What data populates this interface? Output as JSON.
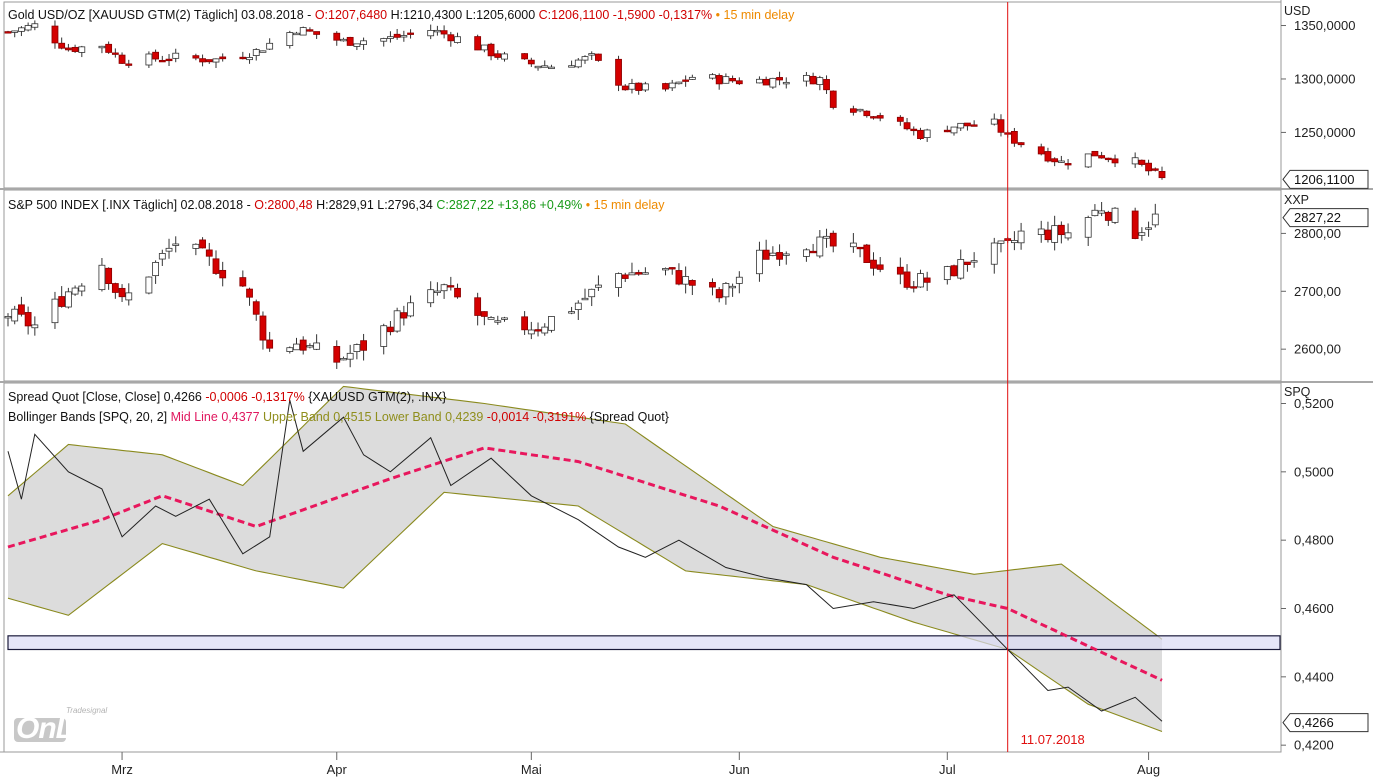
{
  "panels": {
    "gold": {
      "segments": [
        {
          "text": "Gold USD/OZ [XAUUSD GTM(2) Täglich] 03.08.2018 - ",
          "color": "dark"
        },
        {
          "text": "O:1207,6480",
          "color": "red"
        },
        {
          "text": " H:1210,4300 L:1205,6000 ",
          "color": "dark"
        },
        {
          "text": "C:1206,1100 -1,5900 -0,1317%",
          "color": "red"
        },
        {
          "text": " • 15 min delay",
          "color": "orange"
        }
      ],
      "unit": "USD",
      "ticks": [
        "1350,0000",
        "1300,0000",
        "1250,0000"
      ],
      "last_value": "1206,1100"
    },
    "spx": {
      "segments": [
        {
          "text": "S&P 500 INDEX [.INX Täglich] 02.08.2018 - ",
          "color": "dark"
        },
        {
          "text": "O:2800,48",
          "color": "red"
        },
        {
          "text": " H:2829,91 L:2796,34 ",
          "color": "dark"
        },
        {
          "text": "C:2827,22 +13,86 +0,49%",
          "color": "green"
        },
        {
          "text": " • 15 min delay",
          "color": "orange"
        }
      ],
      "unit": "XXP",
      "ticks": [
        "2800,00",
        "2700,00",
        "2600,00"
      ],
      "last_value": "2827,22"
    },
    "spread": {
      "line1_segments": [
        {
          "text": "Spread Quot [Close, Close] ",
          "color": "dark"
        },
        {
          "text": "0,4266",
          "color": "dark"
        },
        {
          "text": " -0,0006 -0,1317%",
          "color": "red"
        },
        {
          "text": " {XAUUSD GTM(2), .INX}",
          "color": "dark"
        }
      ],
      "line2_segments": [
        {
          "text": "Bollinger Bands [SPQ, 20, 2] ",
          "color": "dark"
        },
        {
          "text": "Mid Line 0,4377",
          "color": "pink"
        },
        {
          "text": " Upper Band 0,4515",
          "color": "olive"
        },
        {
          "text": " Lower Band 0,4239",
          "color": "olive"
        },
        {
          "text": " -0,0014 -0,3191%",
          "color": "red"
        },
        {
          "text": " {Spread Quot}",
          "color": "dark"
        }
      ],
      "unit": "SPQ",
      "ticks": [
        "0,5200",
        "0,5000",
        "0,4800",
        "0,4600",
        "0,4400",
        "0,4200"
      ],
      "last_value": "0,4266",
      "marker_date": "11.07.2018"
    }
  },
  "months": [
    "Mrz",
    "Apr",
    "Mai",
    "Jun",
    "Jul",
    "Aug"
  ],
  "logo": {
    "small": "Tradesignal",
    "word": "OnLine"
  },
  "colors": {
    "up": "#ffffff",
    "down": "#d40000",
    "wick": "#333333",
    "band_fill": "#dcdcdc",
    "band_line": "#8a8a1e",
    "mid_line": "#e8175d",
    "spread_line": "#222222",
    "marker": "#e01010",
    "zone_fill": "#dcdcf5",
    "panel_border": "#9a9a9a"
  },
  "chart_data": [
    {
      "type": "candlestick",
      "title": "Gold USD/OZ [XAUUSD GTM(2) Täglich]",
      "ylabel": "USD",
      "ylim": [
        1198,
        1372
      ],
      "x_range": [
        "2018-02-12",
        "2018-08-03"
      ],
      "close_path": [
        [
          "2018-02-12",
          1344
        ],
        [
          "2018-02-16",
          1350
        ],
        [
          "2018-02-21",
          1328
        ],
        [
          "2018-02-26",
          1332
        ],
        [
          "2018-03-01",
          1318
        ],
        [
          "2018-03-09",
          1320
        ],
        [
          "2018-03-15",
          1318
        ],
        [
          "2018-03-21",
          1326
        ],
        [
          "2018-03-27",
          1347
        ],
        [
          "2018-04-03",
          1335
        ],
        [
          "2018-04-10",
          1338
        ],
        [
          "2018-04-16",
          1346
        ],
        [
          "2018-04-20",
          1338
        ],
        [
          "2018-04-26",
          1322
        ],
        [
          "2018-04-30",
          1315
        ],
        [
          "2018-05-04",
          1312
        ],
        [
          "2018-05-10",
          1320
        ],
        [
          "2018-05-15",
          1292
        ],
        [
          "2018-05-21",
          1290
        ],
        [
          "2018-05-25",
          1302
        ],
        [
          "2018-06-01",
          1298
        ],
        [
          "2018-06-08",
          1300
        ],
        [
          "2018-06-13",
          1300
        ],
        [
          "2018-06-15",
          1278
        ],
        [
          "2018-06-21",
          1268
        ],
        [
          "2018-06-28",
          1248
        ],
        [
          "2018-07-03",
          1256
        ],
        [
          "2018-07-09",
          1258
        ],
        [
          "2018-07-11",
          1246
        ],
        [
          "2018-07-17",
          1228
        ],
        [
          "2018-07-19",
          1222
        ],
        [
          "2018-07-24",
          1230
        ],
        [
          "2018-07-30",
          1222
        ],
        [
          "2018-08-01",
          1214
        ],
        [
          "2018-08-03",
          1206
        ]
      ]
    },
    {
      "type": "candlestick",
      "title": "S&P 500 INDEX [.INX Täglich]",
      "ylabel": "XXP",
      "ylim": [
        2545,
        2875
      ],
      "x_range": [
        "2018-02-12",
        "2018-08-02"
      ],
      "close_path": [
        [
          "2018-02-12",
          2660
        ],
        [
          "2018-02-16",
          2640
        ],
        [
          "2018-02-21",
          2700
        ],
        [
          "2018-02-26",
          2750
        ],
        [
          "2018-03-01",
          2680
        ],
        [
          "2018-03-09",
          2785
        ],
        [
          "2018-03-13",
          2760
        ],
        [
          "2018-03-19",
          2710
        ],
        [
          "2018-03-23",
          2600
        ],
        [
          "2018-03-27",
          2612
        ],
        [
          "2018-04-02",
          2580
        ],
        [
          "2018-04-06",
          2605
        ],
        [
          "2018-04-12",
          2665
        ],
        [
          "2018-04-18",
          2705
        ],
        [
          "2018-04-25",
          2640
        ],
        [
          "2018-05-02",
          2640
        ],
        [
          "2018-05-07",
          2672
        ],
        [
          "2018-05-14",
          2730
        ],
        [
          "2018-05-21",
          2735
        ],
        [
          "2018-05-29",
          2690
        ],
        [
          "2018-06-04",
          2760
        ],
        [
          "2018-06-11",
          2785
        ],
        [
          "2018-06-14",
          2780
        ],
        [
          "2018-06-19",
          2765
        ],
        [
          "2018-06-25",
          2720
        ],
        [
          "2018-06-29",
          2718
        ],
        [
          "2018-07-02",
          2730
        ],
        [
          "2018-07-06",
          2760
        ],
        [
          "2018-07-11",
          2775
        ],
        [
          "2018-07-13",
          2800
        ],
        [
          "2018-07-20",
          2801
        ],
        [
          "2018-07-25",
          2846
        ],
        [
          "2018-07-30",
          2803
        ],
        [
          "2018-08-02",
          2827
        ]
      ]
    },
    {
      "type": "line",
      "title": "Spread Quot [Close, Close] {XAUUSD GTM(2), .INX}",
      "ylabel": "SPQ",
      "ylim": [
        0.418,
        0.526
      ],
      "series": [
        {
          "name": "Spread Quot",
          "points": [
            [
              "2018-02-12",
              0.506
            ],
            [
              "2018-02-14",
              0.492
            ],
            [
              "2018-02-16",
              0.511
            ],
            [
              "2018-02-21",
              0.5
            ],
            [
              "2018-02-26",
              0.495
            ],
            [
              "2018-03-01",
              0.481
            ],
            [
              "2018-03-06",
              0.49
            ],
            [
              "2018-03-09",
              0.487
            ],
            [
              "2018-03-14",
              0.492
            ],
            [
              "2018-03-19",
              0.476
            ],
            [
              "2018-03-23",
              0.481
            ],
            [
              "2018-03-26",
              0.521
            ],
            [
              "2018-03-28",
              0.506
            ],
            [
              "2018-04-03",
              0.516
            ],
            [
              "2018-04-06",
              0.505
            ],
            [
              "2018-04-10",
              0.5
            ],
            [
              "2018-04-16",
              0.51
            ],
            [
              "2018-04-19",
              0.496
            ],
            [
              "2018-04-25",
              0.504
            ],
            [
              "2018-05-01",
              0.493
            ],
            [
              "2018-05-08",
              0.486
            ],
            [
              "2018-05-14",
              0.478
            ],
            [
              "2018-05-18",
              0.475
            ],
            [
              "2018-05-23",
              0.48
            ],
            [
              "2018-05-30",
              0.472
            ],
            [
              "2018-06-05",
              0.469
            ],
            [
              "2018-06-11",
              0.467
            ],
            [
              "2018-06-15",
              0.46
            ],
            [
              "2018-06-21",
              0.462
            ],
            [
              "2018-06-27",
              0.46
            ],
            [
              "2018-07-03",
              0.464
            ],
            [
              "2018-07-09",
              0.452
            ],
            [
              "2018-07-11",
              0.448
            ],
            [
              "2018-07-17",
              0.436
            ],
            [
              "2018-07-20",
              0.437
            ],
            [
              "2018-07-25",
              0.43
            ],
            [
              "2018-07-30",
              0.434
            ],
            [
              "2018-08-03",
              0.427
            ]
          ]
        },
        {
          "name": "Mid Line",
          "points": [
            [
              "2018-02-12",
              0.478
            ],
            [
              "2018-02-26",
              0.486
            ],
            [
              "2018-03-07",
              0.493
            ],
            [
              "2018-03-21",
              0.484
            ],
            [
              "2018-04-10",
              0.498
            ],
            [
              "2018-04-24",
              0.507
            ],
            [
              "2018-05-08",
              0.503
            ],
            [
              "2018-05-29",
              0.49
            ],
            [
              "2018-06-15",
              0.475
            ],
            [
              "2018-07-02",
              0.464
            ],
            [
              "2018-07-11",
              0.46
            ],
            [
              "2018-07-23",
              0.449
            ],
            [
              "2018-08-03",
              0.439
            ]
          ]
        },
        {
          "name": "Upper Band",
          "points": [
            [
              "2018-02-12",
              0.493
            ],
            [
              "2018-02-21",
              0.508
            ],
            [
              "2018-03-07",
              0.505
            ],
            [
              "2018-03-19",
              0.496
            ],
            [
              "2018-04-03",
              0.525
            ],
            [
              "2018-04-24",
              0.52
            ],
            [
              "2018-05-15",
              0.514
            ],
            [
              "2018-06-06",
              0.484
            ],
            [
              "2018-06-22",
              0.475
            ],
            [
              "2018-07-06",
              0.47
            ],
            [
              "2018-07-19",
              0.473
            ],
            [
              "2018-08-03",
              0.451
            ]
          ]
        },
        {
          "name": "Lower Band",
          "points": [
            [
              "2018-02-12",
              0.463
            ],
            [
              "2018-02-21",
              0.458
            ],
            [
              "2018-03-07",
              0.479
            ],
            [
              "2018-03-21",
              0.471
            ],
            [
              "2018-04-03",
              0.466
            ],
            [
              "2018-04-18",
              0.494
            ],
            [
              "2018-05-08",
              0.49
            ],
            [
              "2018-05-24",
              0.471
            ],
            [
              "2018-06-11",
              0.467
            ],
            [
              "2018-06-27",
              0.456
            ],
            [
              "2018-07-11",
              0.448
            ],
            [
              "2018-07-23",
              0.432
            ],
            [
              "2018-08-03",
              0.424
            ]
          ]
        }
      ],
      "zone": [
        0.448,
        0.452
      ],
      "marker_date": "2018-07-11"
    }
  ]
}
